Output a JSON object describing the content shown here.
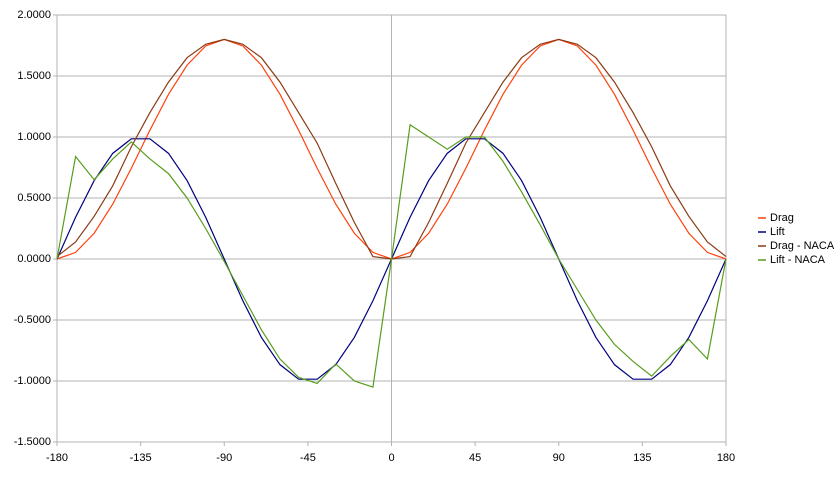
{
  "chart_data": {
    "type": "line",
    "x": [
      -180,
      -170,
      -160,
      -150,
      -140,
      -130,
      -120,
      -110,
      -100,
      -90,
      -80,
      -70,
      -60,
      -50,
      -40,
      -30,
      -20,
      -10,
      0,
      10,
      20,
      30,
      40,
      50,
      60,
      70,
      80,
      90,
      100,
      110,
      120,
      130,
      140,
      150,
      160,
      170,
      180
    ],
    "series": [
      {
        "name": "Drag",
        "color": "#ff420e",
        "values": [
          0,
          0.054,
          0.211,
          0.45,
          0.744,
          1.056,
          1.35,
          1.589,
          1.746,
          1.8,
          1.746,
          1.589,
          1.35,
          1.056,
          0.744,
          0.45,
          0.211,
          0.054,
          0,
          0.054,
          0.211,
          0.45,
          0.744,
          1.056,
          1.35,
          1.589,
          1.746,
          1.8,
          1.746,
          1.589,
          1.35,
          1.056,
          0.744,
          0.45,
          0.211,
          0.054,
          0
        ]
      },
      {
        "name": "Lift",
        "color": "#000080",
        "values": [
          0,
          0.342,
          0.643,
          0.866,
          0.985,
          0.985,
          0.866,
          0.643,
          0.342,
          0,
          -0.342,
          -0.643,
          -0.866,
          -0.985,
          -0.985,
          -0.866,
          -0.643,
          -0.342,
          0,
          0.342,
          0.643,
          0.866,
          0.985,
          0.985,
          0.866,
          0.643,
          0.342,
          0,
          -0.342,
          -0.643,
          -0.866,
          -0.985,
          -0.985,
          -0.866,
          -0.643,
          -0.342,
          0
        ]
      },
      {
        "name": "Drag - NACA",
        "color": "#8b3a14",
        "values": [
          0.02,
          0.14,
          0.35,
          0.6,
          0.92,
          1.2,
          1.45,
          1.65,
          1.76,
          1.8,
          1.76,
          1.65,
          1.45,
          1.2,
          0.95,
          0.62,
          0.3,
          0.02,
          0,
          0.02,
          0.3,
          0.62,
          0.95,
          1.2,
          1.45,
          1.65,
          1.76,
          1.8,
          1.76,
          1.65,
          1.45,
          1.2,
          0.92,
          0.6,
          0.35,
          0.14,
          0.02
        ]
      },
      {
        "name": "Lift - NACA",
        "color": "#579d1c",
        "values": [
          0,
          0.84,
          0.65,
          0.82,
          0.96,
          0.82,
          0.7,
          0.5,
          0.25,
          -0.02,
          -0.3,
          -0.58,
          -0.82,
          -0.97,
          -1.02,
          -0.86,
          -1.0,
          -1.05,
          0,
          1.1,
          1.0,
          0.9,
          1.0,
          1.0,
          0.8,
          0.55,
          0.28,
          0,
          -0.25,
          -0.5,
          -0.7,
          -0.84,
          -0.96,
          -0.8,
          -0.66,
          -0.82,
          0
        ]
      }
    ],
    "xlim": [
      -180,
      180
    ],
    "xticks": [
      -180,
      -135,
      -90,
      -45,
      0,
      45,
      90,
      135,
      180
    ],
    "ylim": [
      -1.5,
      2.0
    ],
    "yticks": [
      {
        "value": -1.5,
        "label": "-1.5000"
      },
      {
        "value": -1.0,
        "label": "-1.0000"
      },
      {
        "value": -0.5,
        "label": "-0.5000"
      },
      {
        "value": 0,
        "label": "0.0000"
      },
      {
        "value": 0.5,
        "label": "0.5000"
      },
      {
        "value": 1.0,
        "label": "1.0000"
      },
      {
        "value": 1.5,
        "label": "1.5000"
      },
      {
        "value": 2.0,
        "label": "2.0000"
      }
    ],
    "grid": true,
    "legend": "right"
  }
}
